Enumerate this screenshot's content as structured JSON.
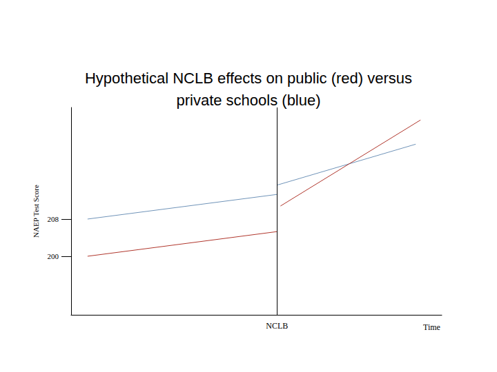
{
  "chart_data": {
    "type": "line",
    "title": "Hypothetical NCLB effects on public (red) versus\nprivate schools (blue)",
    "ylabel": "NAEP Test Score",
    "xlabel": "Time",
    "xlim": [
      0,
      540
    ],
    "xticks": [
      {
        "value": 300,
        "label": "NCLB"
      }
    ],
    "ylim": [
      187.4,
      232
    ],
    "yticks": [
      200,
      208
    ],
    "series": [
      {
        "color": "#6f93b8",
        "x": [
          24,
          300
        ],
        "values": [
          208,
          213.3
        ]
      },
      {
        "color": "#6f93b8",
        "x": [
          300,
          502
        ],
        "values": [
          215.3,
          224.1
        ]
      },
      {
        "color": "#b0362c",
        "x": [
          24,
          300
        ],
        "values": [
          200,
          205.3
        ]
      },
      {
        "color": "#b0362c",
        "x": [
          305,
          509
        ],
        "values": [
          210.8,
          229.3
        ]
      }
    ]
  }
}
